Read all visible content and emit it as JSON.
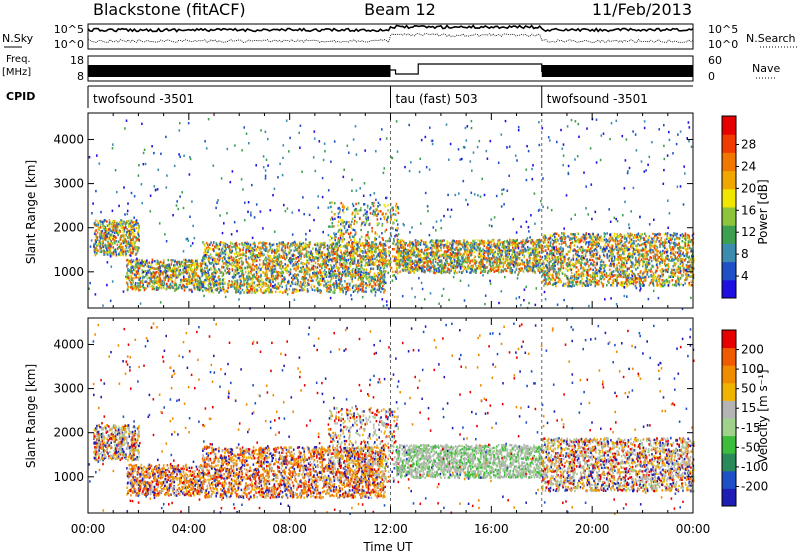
{
  "header": {
    "station": "Blackstone (fitACF)",
    "beam": "Beam 12",
    "date": "11/Feb/2013"
  },
  "strips": {
    "nsky_label": "N.Sky",
    "nsky_ticks": [
      "10^5",
      "10^0"
    ],
    "nsearch_label": "N.Search",
    "freq_label": "Freq.",
    "freq_unit": "[MHz]",
    "freq_ticks": [
      "18",
      "8"
    ],
    "nave_label": "Nave",
    "nave_ticks": [
      "60",
      "0"
    ],
    "cpid_label": "CPID",
    "cpid_segments": [
      {
        "label": "twofsound -3501",
        "start_hour": 0,
        "end_hour": 12
      },
      {
        "label": "tau (fast) 503",
        "start_hour": 12,
        "end_hour": 18
      },
      {
        "label": "twofsound -3501",
        "start_hour": 18,
        "end_hour": 24
      }
    ]
  },
  "chart_data": [
    {
      "type": "heatmap",
      "title": "",
      "ylabel": "Slant Range [km]",
      "xlim": [
        0,
        24
      ],
      "ylim": [
        180,
        4600
      ],
      "yticks": [
        1000,
        2000,
        3000,
        4000
      ],
      "colorbar": {
        "label": "Power [dB]",
        "ticks": [
          "4",
          "8",
          "12",
          "16",
          "20",
          "24",
          "28"
        ],
        "colors": [
          "#1e10e0",
          "#1f50c8",
          "#3c8cb0",
          "#3ca050",
          "#8cc43c",
          "#f0e600",
          "#f0a800",
          "#f07800",
          "#f03c00",
          "#e60000"
        ]
      },
      "description_regions": [
        {
          "hours": [
            0.2,
            2.0
          ],
          "range_km": [
            1400,
            2300
          ],
          "level": "mixed"
        },
        {
          "hours": [
            1.5,
            11.8
          ],
          "range_km": [
            550,
            1500
          ],
          "level": "strong"
        },
        {
          "hours": [
            12.2,
            18.0
          ],
          "range_km": [
            1000,
            1800
          ],
          "level": "strong"
        },
        {
          "hours": [
            18.0,
            24.0
          ],
          "range_km": [
            700,
            1900
          ],
          "level": "strong"
        }
      ]
    },
    {
      "type": "heatmap",
      "title": "",
      "xlabel": "Time UT",
      "ylabel": "Slant Range [km]",
      "xlim": [
        0,
        24
      ],
      "ylim": [
        180,
        4600
      ],
      "xticks": [
        "00:00",
        "04:00",
        "08:00",
        "12:00",
        "16:00",
        "20:00",
        "00:00"
      ],
      "yticks": [
        1000,
        2000,
        3000,
        4000
      ],
      "colorbar": {
        "label": "Velocity [m s⁻¹]",
        "ticks": [
          "200",
          "100",
          "50",
          "15",
          "-15",
          "-50",
          "-100",
          "-200"
        ],
        "colors": [
          "#1e1eb4",
          "#1e50c8",
          "#2a8a5a",
          "#3cbe3c",
          "#a0d28c",
          "#b4b4b4",
          "#f0b400",
          "#f08c00",
          "#f05a00",
          "#e60000"
        ]
      }
    }
  ]
}
